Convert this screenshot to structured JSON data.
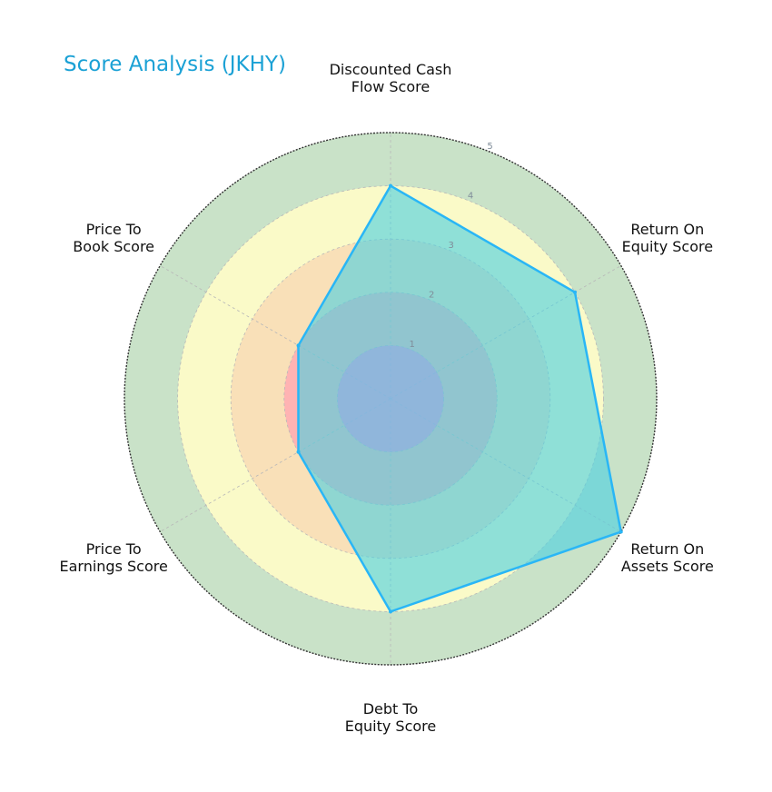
{
  "chart_data": {
    "type": "radar",
    "title": "Score Analysis (JKHY)",
    "axes": [
      [
        "Discounted Cash",
        "Flow Score"
      ],
      [
        "Return On",
        "Equity Score"
      ],
      [
        "Return On",
        "Assets Score"
      ],
      [
        "Debt To",
        "Equity Score"
      ],
      [
        "Price To",
        "Earnings Score"
      ],
      [
        "Price To",
        "Book Score"
      ]
    ],
    "values": [
      4,
      4,
      5,
      4,
      2,
      2
    ],
    "rlim": [
      0,
      5
    ],
    "r_ticks": [
      "1",
      "2",
      "3",
      "4",
      "5"
    ],
    "band_colors": [
      "#ffb3b3",
      "#f9e0b8",
      "#fafac8",
      "#c9e2c8"
    ],
    "series_fill": "#4dd0e1",
    "series_line": "#29b6f6",
    "inner_circle_color": "#8fa9e6",
    "grid": true
  }
}
